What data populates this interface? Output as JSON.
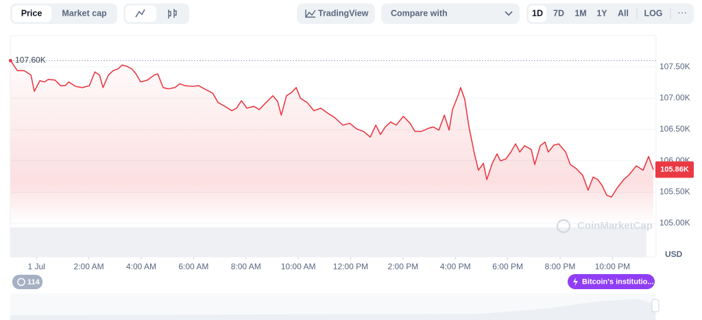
{
  "ui": {
    "tabs": [
      "Price",
      "Market cap"
    ],
    "tradingview": "TradingView",
    "compare": "Compare with",
    "ranges": [
      "1D",
      "7D",
      "1M",
      "1Y",
      "All",
      "LOG"
    ],
    "high_label": "107.60K",
    "current_label": "105.86K",
    "currency": "USD",
    "watermark": "CoinMarketCap",
    "events_count": "114",
    "news": "Bitcoin's institutio..."
  },
  "chart_data": {
    "type": "line",
    "color": "#ea3943",
    "grid": true,
    "xlim": [
      -1,
      23.56
    ],
    "ylim": [
      105000,
      108000
    ],
    "xticks": [
      {
        "value": 0,
        "label": "1 Jul"
      },
      {
        "value": 2,
        "label": "2:00 AM"
      },
      {
        "value": 4,
        "label": "4:00 AM"
      },
      {
        "value": 6,
        "label": "6:00 AM"
      },
      {
        "value": 8,
        "label": "8:00 AM"
      },
      {
        "value": 10,
        "label": "10:00 AM"
      },
      {
        "value": 12,
        "label": "12:00 PM"
      },
      {
        "value": 14,
        "label": "2:00 PM"
      },
      {
        "value": 16,
        "label": "4:00 PM"
      },
      {
        "value": 18,
        "label": "6:00 PM"
      },
      {
        "value": 20,
        "label": "8:00 PM"
      },
      {
        "value": 22,
        "label": "10:00 PM"
      }
    ],
    "yticks": [
      {
        "value": 105000,
        "label": "105.00K"
      },
      {
        "value": 105500,
        "label": "105.50K"
      },
      {
        "value": 106000,
        "label": "106.00K"
      },
      {
        "value": 106500,
        "label": "106.50K"
      },
      {
        "value": 107000,
        "label": "107.00K"
      },
      {
        "value": 107500,
        "label": "107.50K"
      }
    ],
    "x": [
      -0.99,
      -0.73,
      -0.47,
      -0.21,
      -0.08,
      0.13,
      0.31,
      0.45,
      0.71,
      0.92,
      1.1,
      1.23,
      1.49,
      1.75,
      2.02,
      2.23,
      2.41,
      2.54,
      2.75,
      2.93,
      3.12,
      3.27,
      3.46,
      3.64,
      3.8,
      3.98,
      4.24,
      4.5,
      4.63,
      4.84,
      5.03,
      5.29,
      5.47,
      5.68,
      5.94,
      6.2,
      6.41,
      6.73,
      6.94,
      7.2,
      7.46,
      7.64,
      7.83,
      8.04,
      8.3,
      8.51,
      8.77,
      9.03,
      9.21,
      9.35,
      9.55,
      9.74,
      9.92,
      10.08,
      10.34,
      10.6,
      10.86,
      11.13,
      11.39,
      11.7,
      11.96,
      12.23,
      12.49,
      12.75,
      12.96,
      13.14,
      13.32,
      13.53,
      13.74,
      14.01,
      14.27,
      14.45,
      14.71,
      14.97,
      15.16,
      15.37,
      15.58,
      15.76,
      15.89,
      16.1,
      16.2,
      16.36,
      16.52,
      16.73,
      16.88,
      17.07,
      17.2,
      17.41,
      17.59,
      17.72,
      17.93,
      18.12,
      18.3,
      18.46,
      18.64,
      18.9,
      19.03,
      19.24,
      19.42,
      19.55,
      19.76,
      19.95,
      20.21,
      20.39,
      20.6,
      20.86,
      21.07,
      21.26,
      21.44,
      21.6,
      21.78,
      21.96,
      22.17,
      22.43,
      22.64,
      22.91,
      23.17,
      23.38,
      23.56
    ],
    "values": [
      107600,
      107440,
      107440,
      107370,
      107110,
      107280,
      107260,
      107300,
      107290,
      107200,
      107200,
      107260,
      107190,
      107170,
      107200,
      107420,
      107370,
      107170,
      107370,
      107440,
      107470,
      107530,
      107510,
      107470,
      107390,
      107260,
      107290,
      107370,
      107390,
      107170,
      107150,
      107170,
      107230,
      107200,
      107190,
      107200,
      107150,
      107080,
      106930,
      106870,
      106800,
      106840,
      106960,
      106840,
      106870,
      106820,
      106930,
      107040,
      106950,
      106730,
      107040,
      107090,
      107170,
      107000,
      106930,
      106800,
      106840,
      106760,
      106690,
      106570,
      106600,
      106510,
      106470,
      106380,
      106570,
      106420,
      106540,
      106620,
      106570,
      106710,
      106600,
      106470,
      106470,
      106520,
      106540,
      106490,
      106730,
      106490,
      106820,
      107040,
      107170,
      106980,
      106540,
      106110,
      105850,
      105960,
      105700,
      105960,
      106110,
      106000,
      106030,
      106140,
      106270,
      106140,
      106240,
      106180,
      105940,
      106240,
      106300,
      106140,
      106250,
      106270,
      106140,
      105940,
      105880,
      105770,
      105530,
      105740,
      105700,
      105610,
      105450,
      105420,
      105560,
      105700,
      105780,
      105920,
      105850,
      106070,
      105860
    ]
  }
}
